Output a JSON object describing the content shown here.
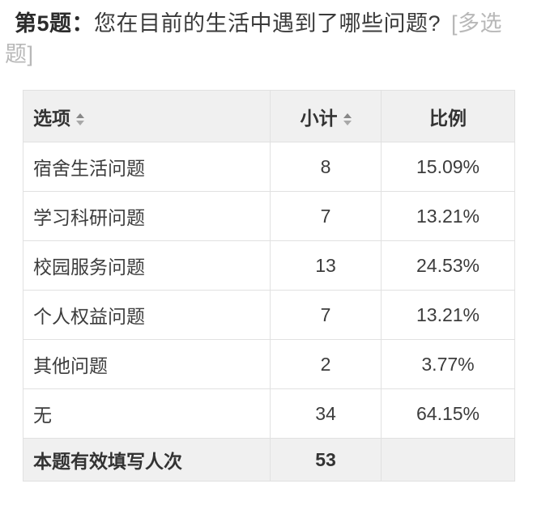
{
  "title": {
    "number": "第5题：",
    "question": "您在目前的生活中遇到了哪些问题?",
    "type_tag": "[多选题]"
  },
  "table": {
    "headers": {
      "option": "选项",
      "count": "小计",
      "ratio": "比例"
    },
    "rows": [
      {
        "option": "宿舍生活问题",
        "count": "8",
        "ratio": "15.09%"
      },
      {
        "option": "学习科研问题",
        "count": "7",
        "ratio": "13.21%"
      },
      {
        "option": "校园服务问题",
        "count": "13",
        "ratio": "24.53%"
      },
      {
        "option": "个人权益问题",
        "count": "7",
        "ratio": "13.21%"
      },
      {
        "option": "其他问题",
        "count": "2",
        "ratio": "3.77%"
      },
      {
        "option": "无",
        "count": "34",
        "ratio": "64.15%"
      }
    ],
    "footer": {
      "label": "本题有效填写人次",
      "count": "53",
      "ratio": ""
    }
  },
  "icons": {
    "option_sort": "sort-updown-icon",
    "count_sort": "sort-updown-icon"
  },
  "colors": {
    "header_bg": "#f0f0f0",
    "row_bg": "#ffffff",
    "border": "#e1e1e1",
    "text": "#333333",
    "muted_tag": "#b8b8b8",
    "sort_arrow": "#878787"
  },
  "chart_data": {
    "type": "table",
    "title": "第5题：您在目前的生活中遇到了哪些问题? [多选题]",
    "columns": [
      "选项",
      "小计",
      "比例"
    ],
    "rows": [
      [
        "宿舍生活问题",
        8,
        "15.09%"
      ],
      [
        "学习科研问题",
        7,
        "13.21%"
      ],
      [
        "校园服务问题",
        13,
        "24.53%"
      ],
      [
        "个人权益问题",
        7,
        "13.21%"
      ],
      [
        "其他问题",
        2,
        "3.77%"
      ],
      [
        "无",
        34,
        "64.15%"
      ]
    ],
    "footer": [
      "本题有效填写人次",
      53,
      ""
    ],
    "total_respondents": 53
  }
}
